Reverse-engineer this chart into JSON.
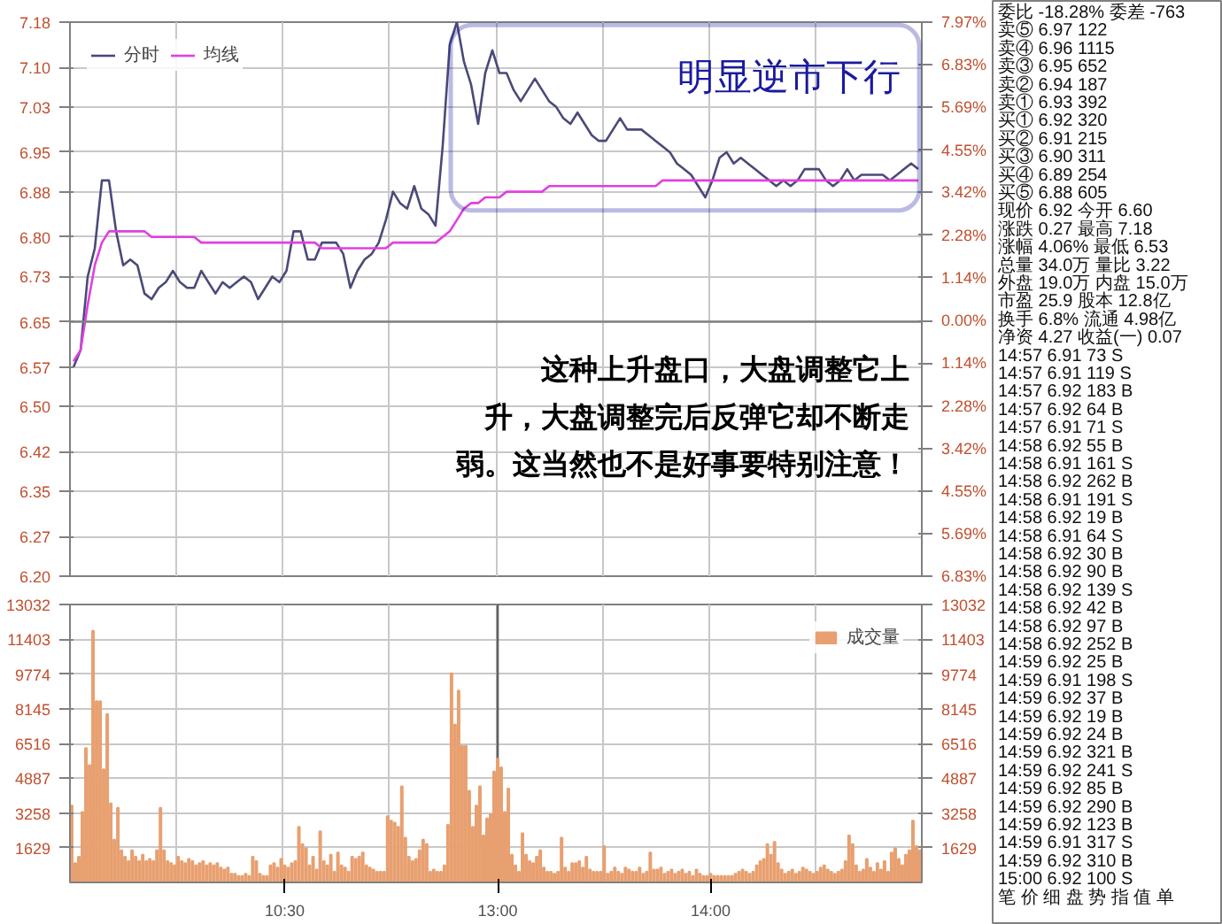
{
  "chart_data": [
    {
      "type": "line",
      "categories": [
        null,
        null,
        null,
        null,
        null,
        null,
        null,
        null,
        null,
        null,
        null,
        null,
        null,
        null,
        null,
        null,
        null,
        null,
        null,
        null,
        null,
        null,
        null,
        null,
        null,
        null,
        null,
        null,
        null,
        null,
        null,
        null,
        null,
        null,
        null,
        null,
        null,
        null,
        null,
        null,
        null,
        null,
        null,
        null,
        null,
        null,
        null,
        null,
        null,
        null,
        null,
        null,
        null,
        null,
        null,
        null,
        null,
        null,
        null,
        null,
        null,
        null,
        null,
        null,
        null,
        null,
        null,
        null,
        null,
        null,
        null,
        null,
        null,
        null,
        null,
        null,
        null,
        null,
        null,
        null,
        null,
        null,
        null,
        null,
        null,
        null,
        null,
        null,
        null,
        null,
        null,
        null,
        null,
        null,
        null,
        null,
        null,
        null,
        null,
        null,
        null,
        null,
        null,
        null,
        null,
        null,
        null,
        null,
        null,
        null,
        null,
        null,
        null,
        null,
        null,
        null,
        null,
        null,
        null,
        null
      ],
      "ylim": [
        6.2,
        7.18
      ],
      "y2lim": [
        -6.83,
        7.97
      ],
      "yticks": [
        {
          "value": 6.2,
          "label": "6.20"
        },
        6.27,
        6.35,
        6.42,
        {
          "value": 6.5,
          "label": "6.50"
        },
        6.57,
        6.65,
        6.73,
        {
          "value": 6.8,
          "label": "6.80"
        },
        6.88,
        6.95,
        7.03,
        {
          "value": 7.1,
          "label": "7.10"
        },
        7.18
      ],
      "y2ticks": [
        {
          "value": -6.83,
          "label": "6.83%"
        },
        {
          "value": -5.69,
          "label": "5.69%"
        },
        {
          "value": -4.55,
          "label": "4.55%"
        },
        {
          "value": -3.42,
          "label": "3.42%"
        },
        {
          "value": -2.28,
          "label": "2.28%"
        },
        {
          "value": -1.14,
          "label": "1.14%"
        },
        {
          "value": 0,
          "label": "0.00%"
        },
        {
          "value": 1.14,
          "label": "1.14%"
        },
        {
          "value": 2.28,
          "label": "2.28%"
        },
        {
          "value": 3.42,
          "label": "3.42%"
        },
        {
          "value": 4.55,
          "label": "4.55%"
        },
        {
          "value": 5.69,
          "label": "5.69%"
        },
        {
          "value": 6.83,
          "label": "6.83%"
        },
        {
          "value": 7.97,
          "label": "7.97%"
        }
      ],
      "grid": true,
      "legend": "top left",
      "ref_lines": [
        {
          "axis": "y",
          "value": 6.65,
          "color": "#808080"
        }
      ],
      "annotations": [
        "明显逆市下行",
        "这种上升盘口，大盘调整它上升，大盘调整完后反弹它却不断走弱。这当然也不是好事要特别注意！"
      ],
      "series": [
        {
          "name": "分时",
          "color": "#4a4a78",
          "values": [
            6.57,
            6.6,
            6.73,
            6.78,
            6.9,
            6.9,
            6.81,
            6.75,
            6.76,
            6.75,
            6.7,
            6.69,
            6.71,
            6.72,
            6.74,
            6.72,
            6.71,
            6.71,
            6.74,
            6.72,
            6.7,
            6.72,
            6.71,
            6.72,
            6.73,
            6.72,
            6.69,
            6.71,
            6.73,
            6.72,
            6.74,
            6.81,
            6.81,
            6.76,
            6.76,
            6.79,
            6.79,
            6.79,
            6.77,
            6.71,
            6.74,
            6.76,
            6.77,
            6.79,
            6.83,
            6.88,
            6.86,
            6.85,
            6.89,
            6.85,
            6.84,
            6.82,
            6.96,
            7.14,
            7.18,
            7.11,
            7.07,
            7.0,
            7.09,
            7.13,
            7.09,
            7.09,
            7.06,
            7.04,
            7.06,
            7.08,
            7.06,
            7.04,
            7.03,
            7.01,
            7.0,
            7.02,
            7.0,
            6.98,
            6.97,
            6.97,
            6.99,
            7.01,
            6.99,
            6.99,
            6.99,
            6.98,
            6.97,
            6.96,
            6.95,
            6.93,
            6.92,
            6.91,
            6.89,
            6.87,
            6.9,
            6.94,
            6.95,
            6.93,
            6.94,
            6.93,
            6.92,
            6.91,
            6.9,
            6.89,
            6.9,
            6.89,
            6.9,
            6.92,
            6.92,
            6.92,
            6.9,
            6.89,
            6.9,
            6.92,
            6.9,
            6.91,
            6.91,
            6.91,
            6.91,
            6.9,
            6.91,
            6.92,
            6.93,
            6.92
          ]
        },
        {
          "name": "均线",
          "color": "#e040e0",
          "values": [
            6.58,
            6.6,
            6.68,
            6.75,
            6.79,
            6.81,
            6.81,
            6.81,
            6.81,
            6.81,
            6.81,
            6.8,
            6.8,
            6.8,
            6.8,
            6.8,
            6.8,
            6.8,
            6.79,
            6.79,
            6.79,
            6.79,
            6.79,
            6.79,
            6.79,
            6.79,
            6.79,
            6.79,
            6.79,
            6.79,
            6.79,
            6.79,
            6.79,
            6.79,
            6.79,
            6.78,
            6.78,
            6.78,
            6.78,
            6.78,
            6.78,
            6.78,
            6.78,
            6.78,
            6.78,
            6.79,
            6.79,
            6.79,
            6.79,
            6.79,
            6.79,
            6.79,
            6.8,
            6.81,
            6.83,
            6.85,
            6.86,
            6.86,
            6.87,
            6.87,
            6.87,
            6.88,
            6.88,
            6.88,
            6.88,
            6.88,
            6.88,
            6.89,
            6.89,
            6.89,
            6.89,
            6.89,
            6.89,
            6.89,
            6.89,
            6.89,
            6.89,
            6.89,
            6.89,
            6.89,
            6.89,
            6.89,
            6.89,
            6.9,
            6.9,
            6.9,
            6.9,
            6.9,
            6.9,
            6.9,
            6.9,
            6.9,
            6.9,
            6.9,
            6.9,
            6.9,
            6.9,
            6.9,
            6.9,
            6.9,
            6.9,
            6.9,
            6.9,
            6.9,
            6.9,
            6.9,
            6.9,
            6.9,
            6.9,
            6.9,
            6.9,
            6.9,
            6.9,
            6.9,
            6.9,
            6.9,
            6.9,
            6.9,
            6.9,
            6.9
          ]
        }
      ]
    },
    {
      "type": "bar",
      "categories": [
        null,
        null,
        null,
        null,
        null,
        null,
        null,
        null,
        null,
        null,
        null,
        null,
        null,
        null,
        null,
        null,
        null,
        null,
        null,
        null,
        null,
        null,
        null,
        null,
        null,
        null,
        null,
        null,
        null,
        null,
        null,
        null,
        null,
        null,
        null,
        null,
        null,
        null,
        null,
        null,
        null,
        null,
        null,
        null,
        null,
        null,
        null,
        null,
        null,
        null,
        null,
        null,
        null,
        null,
        null,
        null,
        null,
        null,
        null,
        null,
        "10:30",
        null,
        null,
        null,
        null,
        null,
        null,
        null,
        null,
        null,
        null,
        null,
        null,
        null,
        null,
        null,
        null,
        null,
        null,
        null,
        null,
        null,
        null,
        null,
        null,
        null,
        null,
        null,
        null,
        null,
        null,
        null,
        null,
        null,
        null,
        null,
        null,
        null,
        null,
        null,
        null,
        null,
        null,
        null,
        null,
        null,
        null,
        null,
        null,
        null,
        null,
        null,
        null,
        null,
        null,
        null,
        null,
        null,
        null,
        null,
        "13:00",
        null,
        null,
        null,
        null,
        null,
        null,
        null,
        null,
        null,
        null,
        null,
        null,
        null,
        null,
        null,
        null,
        null,
        null,
        null,
        null,
        null,
        null,
        null,
        null,
        null,
        null,
        null,
        null,
        null,
        null,
        null,
        null,
        null,
        null,
        null,
        null,
        null,
        null,
        null,
        null,
        null,
        null,
        null,
        null,
        null,
        null,
        null,
        null,
        null,
        null,
        null,
        null,
        null,
        null,
        null,
        null,
        null,
        null,
        null,
        "14:00",
        null,
        null,
        null,
        null,
        null,
        null,
        null,
        null,
        null,
        null,
        null,
        null,
        null,
        null,
        null,
        null,
        null,
        null,
        null,
        null,
        null,
        null,
        null,
        null,
        null,
        null,
        null,
        null,
        null,
        null,
        null,
        null,
        null,
        null,
        null,
        null,
        null,
        null,
        null,
        null,
        null,
        null,
        null,
        null,
        null,
        null,
        null,
        null,
        null,
        null,
        null,
        null,
        null,
        null,
        null,
        null,
        null,
        null,
        null
      ],
      "ylim": [
        0,
        13032
      ],
      "y2lim": [
        0,
        13032
      ],
      "yticks": [
        1629,
        3258,
        4887,
        6516,
        8145,
        9774,
        11403,
        13032
      ],
      "y2ticks": [
        1629,
        3258,
        4887,
        6516,
        8145,
        9774,
        11403,
        13032
      ],
      "grid": true,
      "legend": "top right",
      "ref_lines": [
        {
          "axis": "x",
          "value": "13:00",
          "color": "#606060"
        }
      ],
      "series": [
        {
          "name": "成交量",
          "color": "#e8a070",
          "values": [
            3600,
            900,
            1200,
            3300,
            6300,
            5500,
            11800,
            8500,
            8500,
            5300,
            7900,
            3700,
            2000,
            3500,
            1500,
            1200,
            1000,
            1500,
            1200,
            1000,
            1300,
            1000,
            1100,
            1000,
            1500,
            3500,
            1500,
            1000,
            900,
            800,
            1200,
            1000,
            900,
            1100,
            1000,
            800,
            900,
            1000,
            800,
            900,
            800,
            900,
            700,
            600,
            700,
            400,
            400,
            300,
            300,
            400,
            300,
            1200,
            1000,
            400,
            300,
            300,
            800,
            900,
            700,
            1100,
            800,
            700,
            900,
            1000,
            2600,
            1800,
            1600,
            800,
            1200,
            600,
            2400,
            1000,
            800,
            1300,
            500,
            1400,
            800,
            700,
            500,
            1200,
            1100,
            1200,
            1400,
            800,
            700,
            600,
            500,
            500,
            500,
            3100,
            2900,
            2800,
            2600,
            4500,
            2100,
            1200,
            1000,
            1100,
            1500,
            2000,
            1800,
            500,
            600,
            500,
            500,
            800,
            2700,
            9800,
            7400,
            9000,
            6400,
            6400,
            4300,
            2600,
            3600,
            4500,
            2200,
            3000,
            3200,
            5200,
            5800,
            5400,
            3300,
            4400,
            1300,
            800,
            500,
            2300,
            1300,
            1000,
            900,
            1200,
            1500,
            700,
            500,
            500,
            400,
            500,
            2100,
            700,
            500,
            900,
            900,
            1000,
            700,
            1200,
            600,
            500,
            500,
            500,
            1700,
            400,
            500,
            700,
            500,
            400,
            700,
            600,
            500,
            500,
            700,
            400,
            500,
            1400,
            600,
            600,
            700,
            400,
            500,
            600,
            400,
            500,
            600,
            400,
            500,
            300,
            600,
            400,
            300,
            300,
            400,
            300,
            300,
            300,
            300,
            300,
            300,
            400,
            500,
            600,
            500,
            400,
            500,
            800,
            1000,
            1100,
            1800,
            1300,
            1900,
            900,
            600,
            400,
            500,
            600,
            400,
            500,
            700,
            600,
            500,
            400,
            500,
            700,
            800,
            600,
            500,
            400,
            500,
            600,
            1000,
            2200,
            1800,
            800,
            500,
            600,
            1100,
            700,
            500,
            900,
            600,
            1000,
            500,
            1400,
            1600,
            1100,
            800,
            1300,
            1500,
            2900,
            1700,
            1500
          ]
        }
      ]
    },
    {
      "type": "other",
      "annotations": [
        "委比 -18.28% 委差 -763",
        "卖⑤ 6.97 122",
        "卖④ 6.96 1115",
        "卖③ 6.95 652",
        "卖② 6.94 187",
        "卖① 6.93 392",
        "买① 6.92 320",
        "买② 6.91 215",
        "买③ 6.90 311",
        "买④ 6.89 254",
        "买⑤ 6.88 605",
        "现价 6.92 今开 6.60",
        "涨跌 0.27 最高 7.18",
        "涨幅 4.06% 最低 6.53",
        "总量 34.0万 量比 3.22",
        "外盘 19.0万 内盘 15.0万",
        "市盈 25.9 股本 12.8亿",
        "换手 6.8% 流通 4.98亿",
        "净资 4.27 收益(一) 0.07",
        "14:57 6.91 73 S",
        "14:57 6.91 119 S",
        "14:57 6.92 183 B",
        "14:57 6.92 64 B",
        "14:57 6.91 71 S",
        "14:58 6.92 55 B",
        "14:58 6.91 161 S",
        "14:58 6.92 262 B",
        "14:58 6.91 191 S",
        "14:58 6.92 19 B",
        "14:58 6.91 64 S",
        "14:58 6.92 30 B",
        "14:58 6.92 90 B",
        "14:58 6.92 139 S",
        "14:58 6.92 42 B",
        "14:58 6.92 97 B",
        "14:58 6.92 252 B",
        "14:59 6.92 25 B",
        "14:59 6.91 198 S",
        "14:59 6.92 37 B",
        "14:59 6.92 19 B",
        "14:59 6.92 24 B",
        "14:59 6.92 321 B",
        "14:59 6.92 241 S",
        "14:59 6.92 85 B",
        "14:59 6.92 290 B",
        "14:59 6.92 123 B",
        "14:59 6.91 317 S",
        "14:59 6.92 310 B",
        "15:00 6.92 100 S",
        "笔 价 细 盘 势 指 值 单"
      ]
    }
  ]
}
